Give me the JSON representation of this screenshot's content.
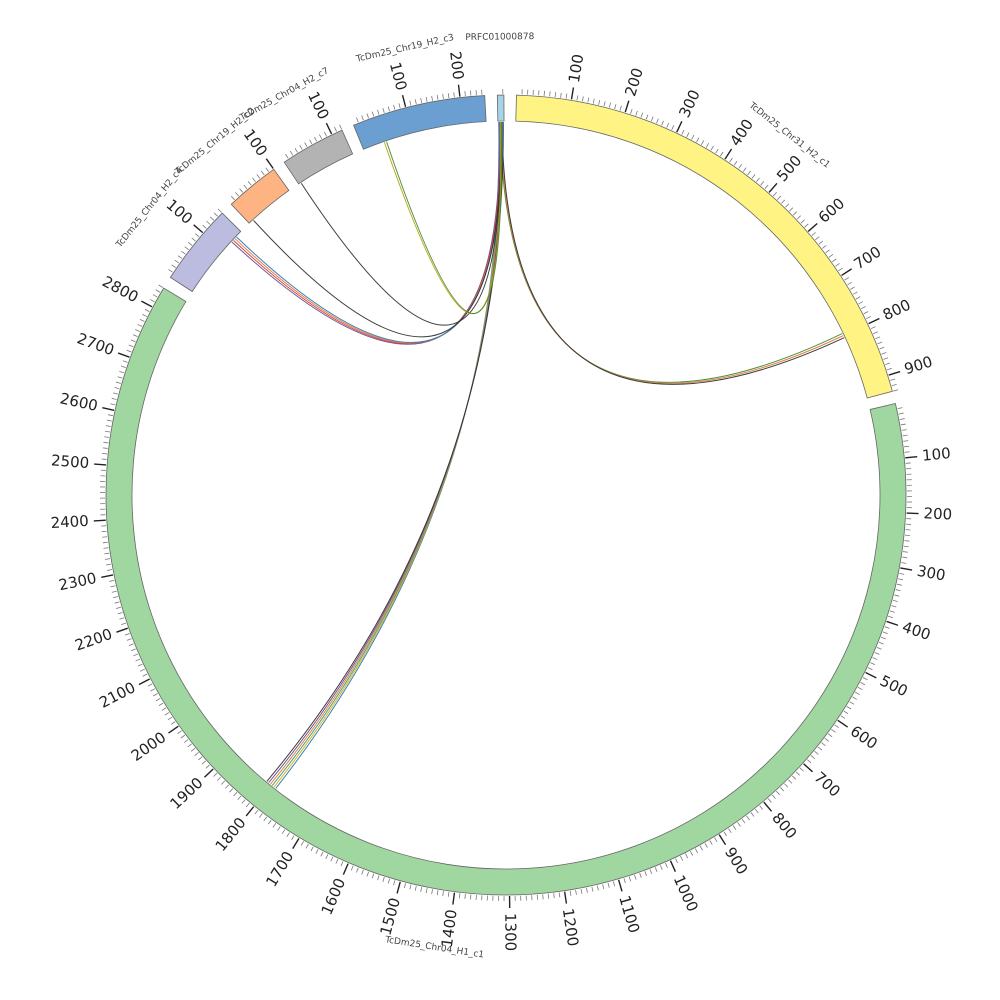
{
  "title": "",
  "chart_data": {
    "type": "chord",
    "units": "position",
    "segments": [
      {
        "name": "TcDm25_Chr31_H2_c1",
        "length": 930,
        "color": "#fff384",
        "ticks": [
          100,
          200,
          300,
          400,
          500,
          600,
          700,
          800,
          900
        ]
      },
      {
        "name": "TcDm25_Chr04_H1_c1",
        "length": 2840,
        "color": "#a0d6a0",
        "ticks": [
          100,
          200,
          300,
          400,
          500,
          600,
          700,
          800,
          900,
          1000,
          1100,
          1200,
          1300,
          1400,
          1500,
          1600,
          1700,
          1800,
          1900,
          2000,
          2100,
          2200,
          2300,
          2400,
          2500,
          2600,
          2700,
          2800
        ]
      },
      {
        "name": "TcDm25_Chr04_H2_c4",
        "length": 150,
        "color": "#bcbce0",
        "ticks": [
          100
        ]
      },
      {
        "name": "TcDm25_Chr19_H2_c2",
        "length": 100,
        "color": "#fdb482",
        "ticks": [
          100
        ]
      },
      {
        "name": "TcDm25_Chr04_H2_c7",
        "length": 120,
        "color": "#b3b3b3",
        "ticks": [
          100
        ]
      },
      {
        "name": "TcDm25_Chr19_H2_c3",
        "length": 245,
        "color": "#6b9fd1",
        "ticks": [
          100,
          200
        ]
      },
      {
        "name": "PRFC01000878",
        "length": 12,
        "color": "#a6d3e8",
        "ticks": []
      }
    ],
    "links": [
      {
        "source": "PRFC01000878",
        "source_pos": 6,
        "target": "TcDm25_Chr31_H2_c1",
        "target_pos": 800,
        "colors": [
          "#4b8a3a",
          "#e07b39",
          "#333333"
        ]
      },
      {
        "source": "PRFC01000878",
        "source_pos": 6,
        "target": "TcDm25_Chr04_H1_c1",
        "target_pos": 1800,
        "colors": [
          "#2e7bb4",
          "#d4b10e",
          "#3c9a7a",
          "#e07b39",
          "#6a4c93",
          "#333333"
        ]
      },
      {
        "source": "PRFC01000878",
        "source_pos": 6,
        "target": "TcDm25_Chr04_H2_c4",
        "target_pos": 130,
        "colors": [
          "#6a4c93",
          "#d63b3b",
          "#e07b39",
          "#2e7bb4"
        ]
      },
      {
        "source": "PRFC01000878",
        "source_pos": 6,
        "target": "TcDm25_Chr19_H2_c2",
        "target_pos": 10,
        "colors": [
          "#333333"
        ]
      },
      {
        "source": "PRFC01000878",
        "source_pos": 6,
        "target": "TcDm25_Chr04_H2_c7",
        "target_pos": 5,
        "colors": [
          "#333333"
        ]
      },
      {
        "source": "PRFC01000878",
        "source_pos": 6,
        "target": "TcDm25_Chr19_H2_c3",
        "target_pos": 45,
        "colors": [
          "#b5a800",
          "#4b8a3a"
        ]
      }
    ]
  }
}
